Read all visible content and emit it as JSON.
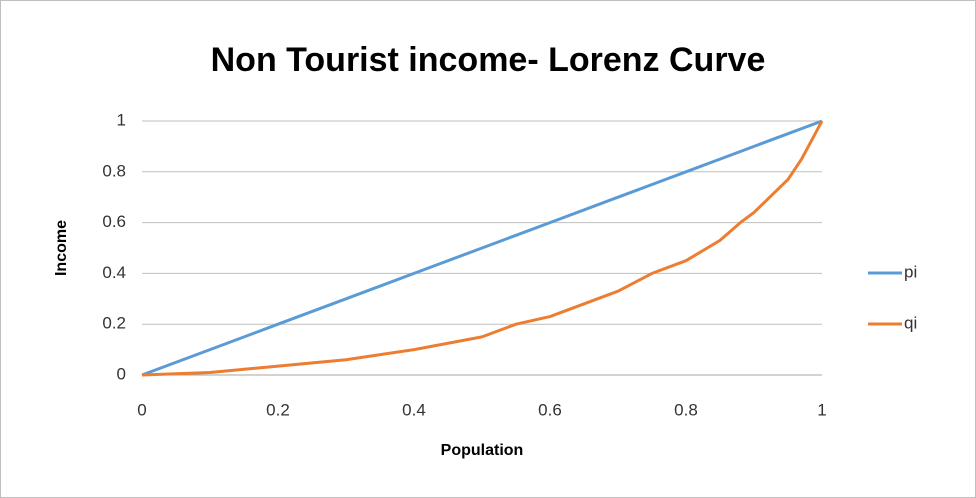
{
  "chart_data": {
    "type": "line",
    "title": "Non Tourist income- Lorenz Curve",
    "x_label": "Population",
    "y_label": "Income",
    "x": [
      0,
      0.1,
      0.2,
      0.3,
      0.4,
      0.5,
      0.55,
      0.6,
      0.7,
      0.75,
      0.8,
      0.85,
      0.88,
      0.9,
      0.95,
      0.97,
      1
    ],
    "series": [
      {
        "name": "pi",
        "color": "#5b9bd5",
        "values": [
          0,
          0.1,
          0.2,
          0.3,
          0.4,
          0.5,
          0.55,
          0.6,
          0.7,
          0.75,
          0.8,
          0.85,
          0.88,
          0.9,
          0.95,
          0.97,
          1
        ]
      },
      {
        "name": "qi",
        "color": "#ed7d31",
        "values": [
          0,
          0.01,
          0.035,
          0.06,
          0.1,
          0.15,
          0.2,
          0.23,
          0.33,
          0.4,
          0.45,
          0.53,
          0.6,
          0.64,
          0.77,
          0.85,
          1
        ]
      }
    ],
    "xlim": [
      0,
      1
    ],
    "ylim": [
      0,
      1
    ],
    "xticks": [
      0,
      0.2,
      0.4,
      0.6,
      0.8,
      1
    ],
    "yticks": [
      0,
      0.2,
      0.4,
      0.6,
      0.8,
      1
    ],
    "grid": true,
    "legend": "right"
  }
}
